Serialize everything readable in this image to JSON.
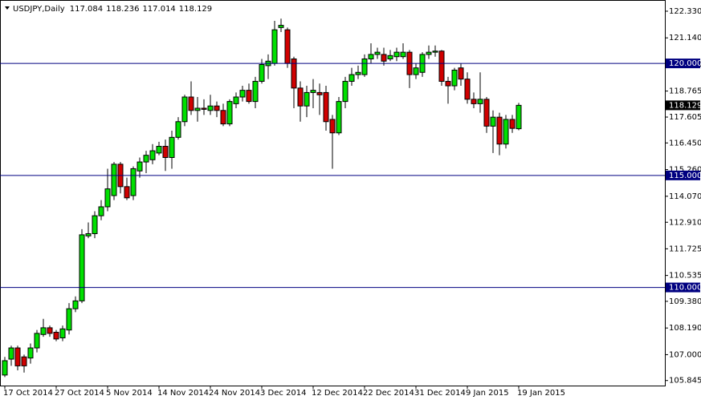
{
  "chart_data": {
    "type": "candlestick",
    "title": "USDJPY,Daily",
    "categories": [
      "17 Oct 2014",
      null,
      null,
      null,
      null,
      null,
      null,
      null,
      "27 Oct 2014",
      null,
      null,
      null,
      null,
      null,
      null,
      null,
      "5 Nov 2014",
      null,
      null,
      null,
      null,
      null,
      null,
      null,
      "14 Nov 2014",
      null,
      null,
      null,
      null,
      null,
      null,
      null,
      "24 Nov 2014",
      null,
      null,
      null,
      null,
      null,
      null,
      null,
      "3 Dec 2014",
      null,
      null,
      null,
      null,
      null,
      null,
      null,
      "12 Dec 2014",
      null,
      null,
      null,
      null,
      null,
      null,
      null,
      "22 Dec 2014",
      null,
      null,
      null,
      null,
      null,
      null,
      null,
      "31 Dec 2014",
      null,
      null,
      null,
      null,
      null,
      null,
      null,
      "9 Jan 2015",
      null,
      null,
      null,
      null,
      null,
      null,
      null,
      "19 Jan 2015"
    ],
    "open": [
      106.09,
      106.8,
      107.3,
      106.9,
      106.85,
      107.3,
      107.9,
      108.2,
      108.0,
      107.75,
      108.1,
      109.05,
      109.4,
      112.3,
      112.4,
      113.2,
      113.6,
      114.1,
      115.5,
      114.5,
      114.1,
      115.2,
      115.6,
      115.7,
      116.0,
      116.3,
      115.8,
      116.7,
      117.4,
      118.5,
      117.9,
      118.0,
      117.9,
      118.1,
      117.9,
      117.3,
      118.2,
      118.5,
      118.8,
      118.3,
      119.2,
      119.9,
      120.0,
      121.6,
      121.5,
      120.2,
      118.9,
      118.1,
      118.7,
      118.7,
      118.7,
      117.5,
      116.9,
      118.3,
      119.2,
      119.5,
      119.5,
      120.2,
      120.4,
      120.4,
      120.2,
      120.3,
      120.3,
      120.5,
      119.5,
      119.6,
      120.4,
      120.5,
      120.55,
      119.2,
      119.0,
      119.8,
      119.3,
      118.4,
      118.2,
      118.4,
      117.2,
      117.6,
      116.4,
      117.5,
      117.084
    ],
    "high": [
      106.9,
      107.4,
      107.4,
      107.0,
      107.5,
      108.1,
      108.6,
      108.3,
      108.1,
      108.3,
      109.3,
      109.6,
      112.6,
      112.9,
      113.4,
      113.9,
      115.3,
      115.6,
      115.6,
      114.9,
      115.4,
      115.8,
      116.1,
      116.4,
      116.5,
      116.6,
      117.0,
      117.6,
      118.6,
      119.2,
      118.5,
      118.4,
      118.6,
      118.3,
      118.2,
      118.4,
      118.7,
      119.0,
      119.1,
      119.4,
      120.2,
      120.4,
      121.9,
      122.0,
      121.6,
      120.3,
      119.2,
      119.0,
      119.3,
      119.1,
      119.0,
      117.7,
      118.5,
      119.4,
      119.8,
      119.9,
      120.4,
      120.9,
      120.7,
      120.7,
      120.6,
      120.7,
      120.9,
      120.6,
      120.0,
      120.5,
      120.8,
      120.8,
      120.6,
      119.4,
      119.8,
      120.0,
      119.6,
      118.7,
      119.6,
      118.5,
      117.9,
      117.8,
      117.7,
      117.7,
      118.236
    ],
    "low": [
      106.0,
      106.5,
      106.3,
      106.2,
      106.6,
      107.1,
      107.8,
      107.8,
      107.6,
      107.6,
      107.9,
      108.9,
      109.3,
      112.2,
      112.2,
      113.0,
      113.4,
      113.9,
      114.2,
      113.9,
      113.9,
      114.9,
      115.1,
      115.5,
      115.9,
      115.2,
      115.3,
      116.6,
      117.2,
      117.7,
      117.4,
      117.7,
      117.7,
      117.6,
      117.2,
      117.2,
      118.0,
      118.3,
      118.2,
      118.0,
      119.1,
      119.3,
      119.9,
      121.4,
      119.8,
      118.0,
      117.4,
      117.6,
      118.0,
      117.7,
      117.0,
      115.3,
      116.8,
      118.0,
      119.0,
      119.3,
      119.4,
      120.0,
      120.2,
      119.9,
      120.1,
      120.1,
      120.2,
      118.9,
      119.3,
      119.4,
      120.2,
      120.3,
      119.0,
      118.2,
      118.8,
      119.0,
      118.2,
      118.0,
      117.8,
      116.9,
      116.0,
      115.9,
      116.2,
      116.9,
      117.014
    ],
    "close": [
      106.73,
      107.3,
      106.5,
      106.5,
      107.3,
      107.95,
      108.2,
      107.95,
      107.7,
      108.15,
      109.05,
      109.4,
      112.35,
      112.4,
      113.2,
      113.6,
      114.4,
      115.5,
      114.5,
      114.0,
      115.3,
      115.6,
      115.9,
      116.1,
      116.3,
      115.8,
      116.7,
      117.4,
      118.5,
      117.9,
      118.0,
      117.95,
      118.1,
      117.9,
      117.3,
      118.3,
      118.5,
      118.8,
      118.3,
      119.2,
      119.95,
      120.1,
      121.5,
      121.7,
      120.0,
      118.9,
      118.1,
      118.7,
      118.8,
      118.6,
      117.4,
      116.9,
      118.3,
      119.2,
      119.5,
      119.6,
      120.2,
      120.4,
      120.5,
      120.1,
      120.35,
      120.5,
      120.5,
      119.5,
      119.8,
      120.4,
      120.5,
      120.55,
      119.2,
      119.0,
      119.7,
      119.3,
      118.4,
      118.2,
      118.4,
      117.2,
      117.6,
      116.4,
      117.5,
      117.1,
      118.129
    ],
    "up_color": "#00e000",
    "down_color": "#d00000",
    "ylim": [
      105.62,
      122.83
    ],
    "yticks": [
      {
        "value": 122.33,
        "label": "122.330"
      },
      {
        "value": 121.14,
        "label": "121.140"
      },
      {
        "value": 119.95,
        "label": "119.950"
      },
      {
        "value": 118.765,
        "label": "118.765"
      },
      {
        "value": 117.605,
        "label": "117.605"
      },
      {
        "value": 116.45,
        "label": "116.450"
      },
      {
        "value": 115.26,
        "label": "115.260"
      },
      {
        "value": 114.07,
        "label": "114.070"
      },
      {
        "value": 112.91,
        "label": "112.910"
      },
      {
        "value": 111.725,
        "label": "111.725"
      },
      {
        "value": 110.535,
        "label": "110.535"
      },
      {
        "value": 109.38,
        "label": "109.380"
      },
      {
        "value": 108.19,
        "label": "108.190"
      },
      {
        "value": 107,
        "label": "107.000"
      },
      {
        "value": 105.845,
        "label": "105.845"
      }
    ],
    "hlines": [
      {
        "value": 120,
        "label": "120.000"
      },
      {
        "value": 115,
        "label": "115.000"
      },
      {
        "value": 110,
        "label": "110.000"
      }
    ],
    "hline_color": "#000080"
  }
}
